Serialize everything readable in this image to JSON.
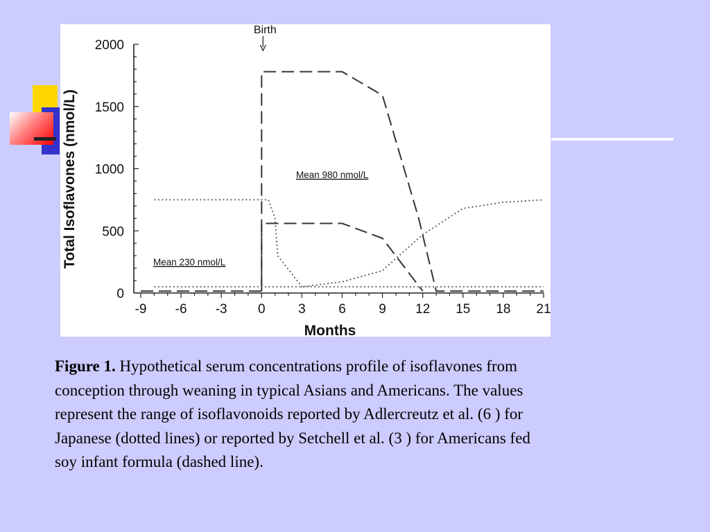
{
  "colors": {
    "background": "#ccccff",
    "accent_yellow": "#ffd700",
    "accent_blue": "#3333cc",
    "accent_red": "#ff4040"
  },
  "chart_data": {
    "type": "line",
    "title": "",
    "xlabel": "Months",
    "ylabel": "Total Isoflavones (nmol/L)",
    "xlim": [
      -9,
      21
    ],
    "ylim": [
      0,
      2000
    ],
    "xticks": [
      -9,
      -6,
      -3,
      0,
      3,
      6,
      9,
      12,
      15,
      18,
      21
    ],
    "yticks": [
      0,
      500,
      1000,
      1500,
      2000
    ],
    "grid": false,
    "birth_marker": {
      "label": "Birth",
      "x": 0
    },
    "annotations": [
      {
        "text": "Mean 980 nmol/L"
      },
      {
        "text": "Mean 230 nmol/L"
      }
    ],
    "series": [
      {
        "style": "dashed",
        "x": [
          -9,
          0,
          0,
          6,
          9,
          11.7,
          13,
          21
        ],
        "y": [
          15,
          15,
          1780,
          1780,
          1590,
          600,
          15,
          15
        ]
      },
      {
        "style": "dashed",
        "x": [
          0,
          0,
          6,
          9,
          12
        ],
        "y": [
          15,
          560,
          560,
          440,
          15
        ]
      },
      {
        "style": "dotted",
        "x": [
          -8,
          0.5,
          1,
          1.2,
          3,
          6,
          9,
          12,
          15,
          18,
          21
        ],
        "y": [
          750,
          750,
          600,
          300,
          50,
          90,
          180,
          470,
          680,
          730,
          750
        ]
      },
      {
        "style": "dotted",
        "x": [
          -8,
          21
        ],
        "y": [
          50,
          50
        ]
      }
    ]
  },
  "caption": {
    "label": "Figure 1.",
    "line1": "Hypothetical serum concentrations profile of isoflavones from",
    "line2": "conception through weaning in typical Asians and Americans. The values",
    "line3": "represent the range of isoflavonoids reported by Adlercreutz et al. (6 ) for",
    "line4": "Japanese (dotted lines) or reported by Setchell et al. (3 ) for Americans fed",
    "line5": "soy infant formula (dashed line)."
  }
}
